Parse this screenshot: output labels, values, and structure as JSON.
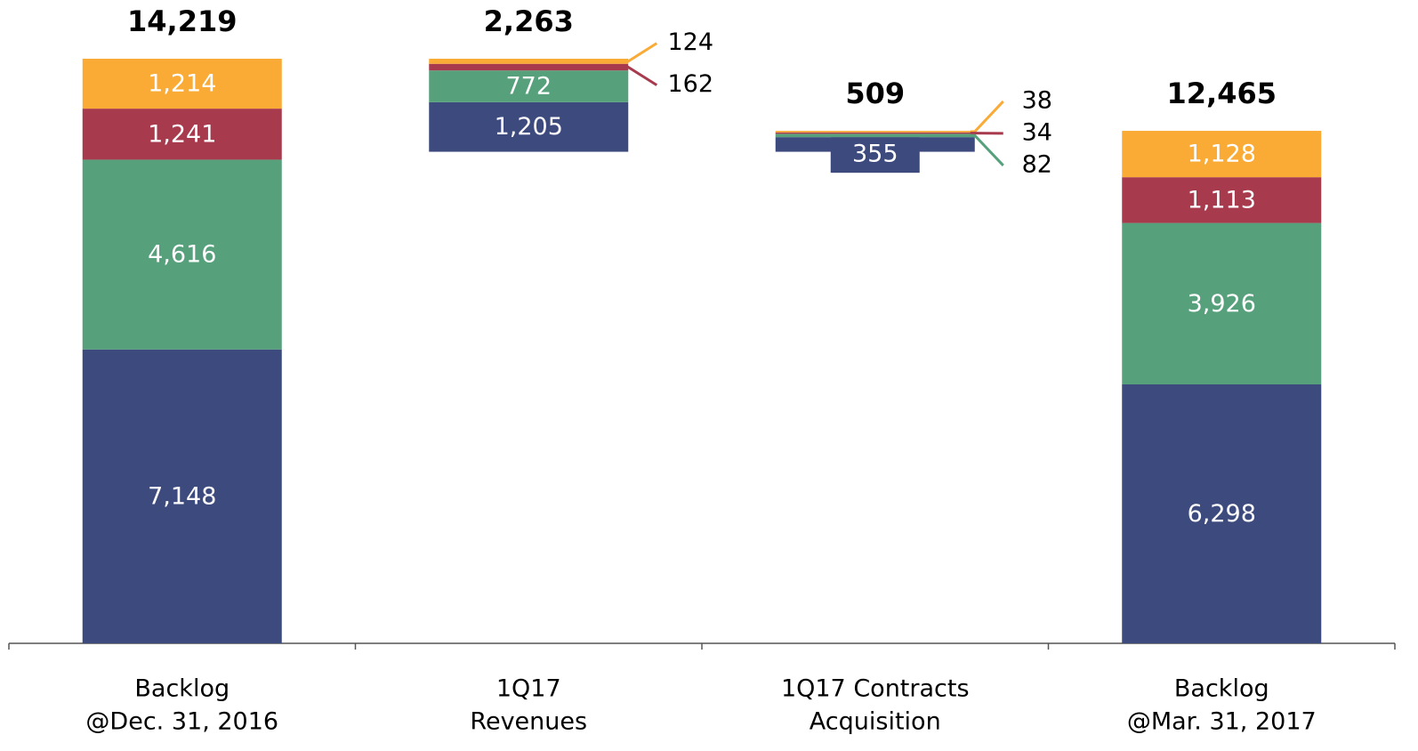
{
  "chart_data": {
    "type": "waterfall",
    "categories": [
      [
        "Backlog",
        "@Dec. 31, 2016"
      ],
      [
        "1Q17",
        "Revenues"
      ],
      [
        "1Q17 Contracts",
        "Acquisition"
      ],
      [
        "Backlog",
        "@Mar. 31, 2017"
      ]
    ],
    "measure": [
      "total",
      "decrease",
      "increase",
      "total"
    ],
    "totals": [
      14219,
      2263,
      509,
      12465
    ],
    "total_labels": [
      "14,219",
      "2,263",
      "509",
      "12,465"
    ],
    "series": [
      {
        "color": "#3d4a7e",
        "values": [
          7148,
          1205,
          355,
          6298
        ],
        "value_labels": [
          "7,148",
          "1,205",
          "355",
          "6,298"
        ]
      },
      {
        "color": "#56a07c",
        "values": [
          4616,
          772,
          82,
          3926
        ],
        "value_labels": [
          "4,616",
          "772",
          "82",
          "3,926"
        ]
      },
      {
        "color": "#a83a4e",
        "values": [
          1241,
          162,
          34,
          1113
        ],
        "value_labels": [
          "1,241",
          "162",
          "34",
          "1,113"
        ]
      },
      {
        "color": "#f9ab35",
        "values": [
          1214,
          124,
          38,
          1128
        ],
        "value_labels": [
          "1,214",
          "124",
          "38",
          "1,128"
        ]
      }
    ]
  }
}
